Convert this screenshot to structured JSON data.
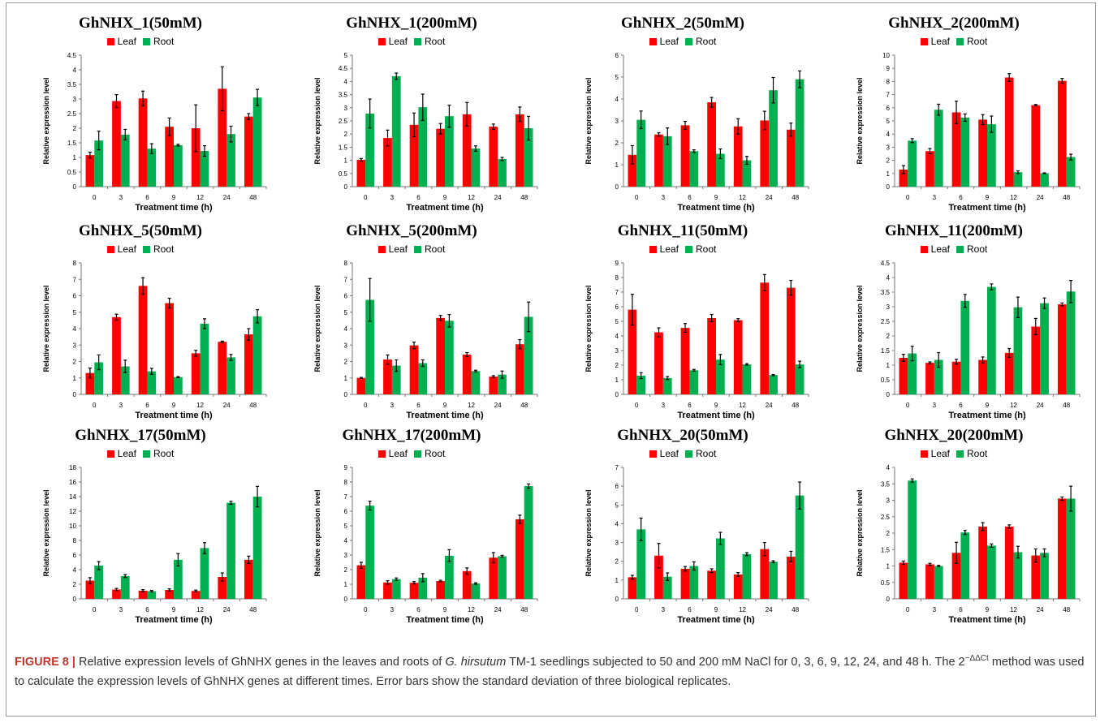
{
  "legend": {
    "leaf_label": "Leaf",
    "root_label": "Root",
    "leaf_color": "#ff0000",
    "root_color": "#00b050"
  },
  "axis_labels": {
    "x": "Treatment time (h)",
    "y": "Relative expression level"
  },
  "caption": {
    "figure_label": "FIGURE 8 |",
    "text_1": " Relative expression levels of GhNHX genes in the leaves and roots of ",
    "species": "G. hirsutum",
    "text_2": " TM-1 seedlings subjected to 50 and 200 mM NaCl for 0, 3, 6, 9, 12, 24, and 48 h. The 2",
    "superscript": "−ΔΔCt",
    "text_3": " method was used to calculate the expression levels of GhNHX genes at different times. Error bars show the standard deviation of three biological replicates."
  },
  "chart_data": [
    {
      "type": "bar",
      "title": "GhNHX_1(50mM)",
      "xlabel": "Treatment time (h)",
      "ylabel": "Relative expression level",
      "categories": [
        "0",
        "3",
        "6",
        "9",
        "12",
        "24",
        "48"
      ],
      "ylim": [
        0,
        4.5
      ],
      "ytick_step": 0.5,
      "yticks": [
        "0",
        "0.5",
        "1",
        "1.5",
        "2",
        "2.5",
        "3",
        "3.5",
        "4",
        "4.5"
      ],
      "series": [
        {
          "name": "Leaf",
          "values": [
            1.08,
            2.93,
            3.02,
            2.05,
            2.0,
            3.35,
            2.4
          ],
          "errors": [
            0.1,
            0.22,
            0.25,
            0.3,
            0.8,
            0.75,
            0.1
          ]
        },
        {
          "name": "Root",
          "values": [
            1.58,
            1.78,
            1.3,
            1.42,
            1.22,
            1.8,
            3.05
          ],
          "errors": [
            0.32,
            0.18,
            0.17,
            0.03,
            0.18,
            0.27,
            0.28
          ]
        }
      ]
    },
    {
      "type": "bar",
      "title": "GhNHX_1(200mM)",
      "xlabel": "Treatment time (h)",
      "ylabel": "Relative expression level",
      "categories": [
        "0",
        "3",
        "6",
        "9",
        "12",
        "24",
        "48"
      ],
      "ylim": [
        0,
        5
      ],
      "ytick_step": 0.5,
      "yticks": [
        "0",
        "0.5",
        "1",
        "1.5",
        "2",
        "2.5",
        "3",
        "3.5",
        "4",
        "4.5",
        "5"
      ],
      "series": [
        {
          "name": "Leaf",
          "values": [
            1.02,
            1.85,
            2.35,
            2.2,
            2.75,
            2.28,
            2.75
          ],
          "errors": [
            0.05,
            0.3,
            0.45,
            0.2,
            0.45,
            0.1,
            0.28
          ]
        },
        {
          "name": "Root",
          "values": [
            2.78,
            4.2,
            3.02,
            2.68,
            1.45,
            1.05,
            2.22
          ],
          "errors": [
            0.55,
            0.12,
            0.5,
            0.42,
            0.1,
            0.06,
            0.45
          ]
        }
      ]
    },
    {
      "type": "bar",
      "title": "GhNHX_2(50mM)",
      "xlabel": "Treatment time (h)",
      "ylabel": "Relative expression level",
      "categories": [
        "0",
        "3",
        "6",
        "9",
        "12",
        "24",
        "48"
      ],
      "ylim": [
        0,
        6
      ],
      "ytick_step": 1,
      "yticks": [
        "0",
        "1",
        "2",
        "3",
        "4",
        "5",
        "6"
      ],
      "series": [
        {
          "name": "Leaf",
          "values": [
            1.45,
            2.38,
            2.8,
            3.85,
            2.75,
            3.02,
            2.6
          ],
          "errors": [
            0.42,
            0.08,
            0.18,
            0.22,
            0.35,
            0.42,
            0.3
          ]
        },
        {
          "name": "Root",
          "values": [
            3.05,
            2.3,
            1.62,
            1.5,
            1.2,
            4.4,
            4.9
          ],
          "errors": [
            0.4,
            0.38,
            0.06,
            0.22,
            0.18,
            0.58,
            0.38
          ]
        }
      ]
    },
    {
      "type": "bar",
      "title": "GhNHX_2(200mM)",
      "xlabel": "Treatment time (h)",
      "ylabel": "Relative expression level",
      "categories": [
        "0",
        "3",
        "6",
        "9",
        "12",
        "24",
        "48"
      ],
      "ylim": [
        0,
        10
      ],
      "ytick_step": 1,
      "yticks": [
        "0",
        "1",
        "2",
        "3",
        "4",
        "5",
        "6",
        "7",
        "8",
        "9",
        "10"
      ],
      "series": [
        {
          "name": "Leaf",
          "values": [
            1.3,
            2.7,
            5.65,
            5.1,
            8.3,
            6.2,
            8.05
          ],
          "errors": [
            0.3,
            0.2,
            0.85,
            0.38,
            0.3,
            0.05,
            0.18
          ]
        },
        {
          "name": "Root",
          "values": [
            3.5,
            5.85,
            5.25,
            4.75,
            1.1,
            1.02,
            2.25
          ],
          "errors": [
            0.15,
            0.42,
            0.28,
            0.62,
            0.1,
            0.03,
            0.22
          ]
        }
      ]
    },
    {
      "type": "bar",
      "title": "GhNHX_5(50mM)",
      "xlabel": "Treatment time (h)",
      "ylabel": "Relative expression level",
      "categories": [
        "0",
        "3",
        "6",
        "9",
        "12",
        "24",
        "48"
      ],
      "ylim": [
        0,
        8
      ],
      "ytick_step": 1,
      "yticks": [
        "0",
        "1",
        "2",
        "3",
        "4",
        "5",
        "6",
        "7",
        "8"
      ],
      "series": [
        {
          "name": "Leaf",
          "values": [
            1.3,
            4.7,
            6.6,
            5.55,
            2.5,
            3.2,
            3.65
          ],
          "errors": [
            0.3,
            0.18,
            0.5,
            0.3,
            0.18,
            0.04,
            0.35
          ]
        },
        {
          "name": "Root",
          "values": [
            1.95,
            1.7,
            1.4,
            1.05,
            4.3,
            2.25,
            4.75
          ],
          "errors": [
            0.45,
            0.38,
            0.18,
            0.03,
            0.3,
            0.18,
            0.4
          ]
        }
      ]
    },
    {
      "type": "bar",
      "title": "GhNHX_5(200mM)",
      "xlabel": "Treatment time (h)",
      "ylabel": "Relative expression level",
      "categories": [
        "0",
        "3",
        "6",
        "9",
        "12",
        "24",
        "48"
      ],
      "ylim": [
        0,
        8
      ],
      "ytick_step": 1,
      "yticks": [
        "0",
        "1",
        "2",
        "3",
        "4",
        "5",
        "6",
        "7",
        "8"
      ],
      "series": [
        {
          "name": "Leaf",
          "values": [
            1.0,
            2.12,
            2.98,
            4.65,
            2.42,
            1.08,
            3.05
          ],
          "errors": [
            0.03,
            0.28,
            0.2,
            0.15,
            0.12,
            0.06,
            0.28
          ]
        },
        {
          "name": "Root",
          "values": [
            5.75,
            1.75,
            1.9,
            4.48,
            1.42,
            1.2,
            4.72
          ],
          "errors": [
            1.3,
            0.35,
            0.2,
            0.38,
            0.05,
            0.22,
            0.9
          ]
        }
      ]
    },
    {
      "type": "bar",
      "title": "GhNHX_11(50mM)",
      "xlabel": "Treatment time (h)",
      "ylabel": "Relative expression level",
      "categories": [
        "0",
        "3",
        "6",
        "9",
        "12",
        "24",
        "48"
      ],
      "ylim": [
        0,
        9
      ],
      "ytick_step": 1,
      "yticks": [
        "0",
        "1",
        "2",
        "3",
        "4",
        "5",
        "6",
        "7",
        "8",
        "9"
      ],
      "series": [
        {
          "name": "Leaf",
          "values": [
            5.8,
            4.25,
            4.55,
            5.22,
            5.08,
            7.65,
            7.3
          ],
          "errors": [
            1.05,
            0.3,
            0.3,
            0.25,
            0.1,
            0.55,
            0.5
          ]
        },
        {
          "name": "Root",
          "values": [
            1.28,
            1.12,
            1.65,
            2.38,
            2.05,
            1.32,
            2.05
          ],
          "errors": [
            0.2,
            0.1,
            0.06,
            0.35,
            0.05,
            0.04,
            0.22
          ]
        }
      ]
    },
    {
      "type": "bar",
      "title": "GhNHX_11(200mM)",
      "xlabel": "Treatment time (h)",
      "ylabel": "Relative expression level",
      "categories": [
        "0",
        "3",
        "6",
        "9",
        "12",
        "24",
        "48"
      ],
      "ylim": [
        0,
        4.5
      ],
      "ytick_step": 0.5,
      "yticks": [
        "0",
        "0.5",
        "1",
        "1.5",
        "2",
        "2.5",
        "3",
        "3.5",
        "4",
        "4.5"
      ],
      "series": [
        {
          "name": "Leaf",
          "values": [
            1.25,
            1.08,
            1.12,
            1.18,
            1.42,
            2.32,
            3.08
          ],
          "errors": [
            0.12,
            0.03,
            0.08,
            0.1,
            0.15,
            0.28,
            0.05
          ]
        },
        {
          "name": "Root",
          "values": [
            1.4,
            1.18,
            3.2,
            3.68,
            2.98,
            3.12,
            3.52
          ],
          "errors": [
            0.25,
            0.25,
            0.22,
            0.1,
            0.35,
            0.18,
            0.38
          ]
        }
      ]
    },
    {
      "type": "bar",
      "title": "GhNHX_17(50mM)",
      "xlabel": "Treatment time (h)",
      "ylabel": "Relative expression level",
      "categories": [
        "0",
        "3",
        "6",
        "9",
        "12",
        "24",
        "48"
      ],
      "ylim": [
        0,
        18
      ],
      "ytick_step": 2,
      "yticks": [
        "0",
        "2",
        "4",
        "6",
        "8",
        "10",
        "12",
        "14",
        "16",
        "18"
      ],
      "series": [
        {
          "name": "Leaf",
          "values": [
            2.5,
            1.28,
            1.12,
            1.22,
            1.08,
            3.0,
            5.35
          ],
          "errors": [
            0.4,
            0.15,
            0.15,
            0.15,
            0.12,
            0.55,
            0.5
          ]
        },
        {
          "name": "Root",
          "values": [
            4.55,
            3.12,
            1.05,
            5.35,
            6.95,
            13.15,
            14.0
          ],
          "errors": [
            0.55,
            0.2,
            0.1,
            0.85,
            0.75,
            0.2,
            1.4
          ]
        }
      ]
    },
    {
      "type": "bar",
      "title": "GhNHX_17(200mM)",
      "xlabel": "Treatment time (h)",
      "ylabel": "Relative expression level",
      "categories": [
        "0",
        "3",
        "6",
        "9",
        "12",
        "24",
        "48"
      ],
      "ylim": [
        0,
        9
      ],
      "ytick_step": 1,
      "yticks": [
        "0",
        "1",
        "2",
        "3",
        "4",
        "5",
        "6",
        "7",
        "8",
        "9"
      ],
      "series": [
        {
          "name": "Leaf",
          "values": [
            2.3,
            1.12,
            1.1,
            1.22,
            1.9,
            2.82,
            5.45
          ],
          "errors": [
            0.2,
            0.12,
            0.08,
            0.05,
            0.22,
            0.35,
            0.28
          ]
        },
        {
          "name": "Root",
          "values": [
            6.38,
            1.35,
            1.45,
            2.95,
            1.05,
            2.92,
            7.72
          ],
          "errors": [
            0.3,
            0.08,
            0.28,
            0.42,
            0.05,
            0.06,
            0.15
          ]
        }
      ]
    },
    {
      "type": "bar",
      "title": "GhNHX_20(50mM)",
      "xlabel": "Treatment time (h)",
      "ylabel": "Relative expression level",
      "categories": [
        "0",
        "3",
        "6",
        "9",
        "12",
        "24",
        "48"
      ],
      "ylim": [
        0,
        7
      ],
      "ytick_step": 1,
      "yticks": [
        "0",
        "1",
        "2",
        "3",
        "4",
        "5",
        "6",
        "7"
      ],
      "series": [
        {
          "name": "Leaf",
          "values": [
            1.15,
            2.3,
            1.6,
            1.5,
            1.3,
            2.65,
            2.25
          ],
          "errors": [
            0.1,
            0.65,
            0.12,
            0.1,
            0.1,
            0.35,
            0.28
          ]
        },
        {
          "name": "Root",
          "values": [
            3.7,
            1.18,
            1.75,
            3.22,
            2.38,
            1.98,
            5.5
          ],
          "errors": [
            0.6,
            0.2,
            0.22,
            0.32,
            0.08,
            0.05,
            0.72
          ]
        }
      ]
    },
    {
      "type": "bar",
      "title": "GhNHX_20(200mM)",
      "xlabel": "Treatment time (h)",
      "ylabel": "Relative expression level",
      "categories": [
        "0",
        "3",
        "6",
        "9",
        "12",
        "24",
        "48"
      ],
      "ylim": [
        0,
        4
      ],
      "ytick_step": 0.5,
      "yticks": [
        "0",
        "0.5",
        "1",
        "1.5",
        "2",
        "2.5",
        "3",
        "3.5",
        "4"
      ],
      "series": [
        {
          "name": "Leaf",
          "values": [
            1.1,
            1.05,
            1.4,
            2.2,
            2.2,
            1.32,
            3.05
          ],
          "errors": [
            0.05,
            0.03,
            0.32,
            0.12,
            0.05,
            0.2,
            0.05
          ]
        },
        {
          "name": "Root",
          "values": [
            3.6,
            1.0,
            2.02,
            1.62,
            1.42,
            1.4,
            3.05
          ],
          "errors": [
            0.05,
            0.02,
            0.06,
            0.05,
            0.18,
            0.12,
            0.38
          ]
        }
      ]
    }
  ]
}
